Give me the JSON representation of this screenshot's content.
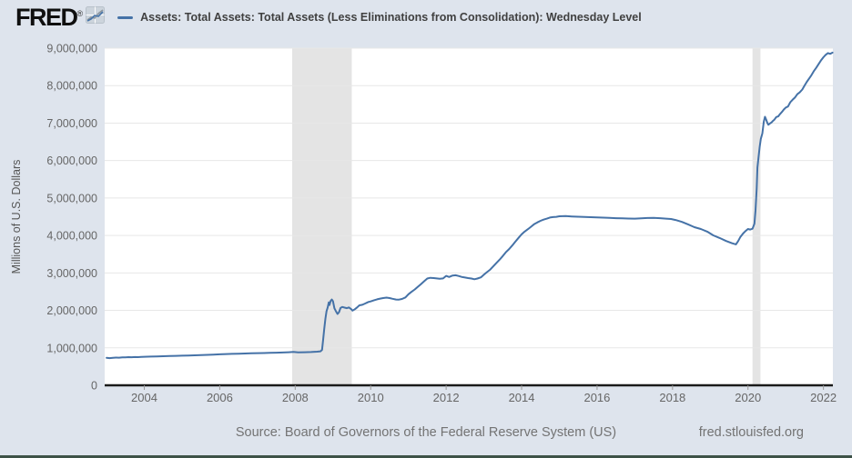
{
  "header": {
    "logo_text": "FRED",
    "logo_registered": "®",
    "legend_marker": "line-dash",
    "series_title": "Assets: Total Assets: Total Assets (Less Eliminations from Consolidation): Wednesday Level"
  },
  "footer": {
    "source_label": "Source: Board of Governors of the Federal Reserve System (US)",
    "link_text": "fred.stlouisfed.org"
  },
  "icons": {
    "logo_chart_icon": "line-chart-icon"
  },
  "colors": {
    "page_background": "#dee4ed",
    "plot_background": "#ffffff",
    "line": "#4572a7",
    "gridline": "#e7e7e7",
    "recession_band": "#e4e4e4",
    "axis_line": "#1a1a1a",
    "tick_text": "#666666",
    "axis_title_text": "#555555",
    "title_text": "#404040",
    "footer_text": "#737373",
    "bottom_bar": "#3d5247"
  },
  "chart_data": {
    "type": "line",
    "title": "Assets: Total Assets: Total Assets (Less Eliminations from Consolidation): Wednesday Level",
    "xlabel": "",
    "ylabel": "Millions of U.S. Dollars",
    "xlim": [
      2002.95,
      2022.25
    ],
    "ylim": [
      0,
      9000000
    ],
    "x_ticks": [
      2004,
      2006,
      2008,
      2010,
      2012,
      2014,
      2016,
      2018,
      2020,
      2022
    ],
    "y_ticks": [
      0,
      1000000,
      2000000,
      3000000,
      4000000,
      5000000,
      6000000,
      7000000,
      8000000,
      9000000
    ],
    "grid": "horizontal",
    "legend_position": "top-header",
    "recession_bands": [
      [
        2007.92,
        2009.5
      ],
      [
        2020.12,
        2020.33
      ]
    ],
    "series": [
      {
        "name": "Assets: Total Assets: Total Assets (Less Eliminations from Consolidation): Wednesday Level",
        "units": "Millions of U.S. Dollars",
        "points": [
          [
            2003.0,
            732000
          ],
          [
            2003.08,
            726000
          ],
          [
            2003.17,
            736000
          ],
          [
            2003.25,
            740000
          ],
          [
            2003.33,
            737000
          ],
          [
            2003.42,
            744000
          ],
          [
            2003.5,
            747000
          ],
          [
            2003.58,
            751000
          ],
          [
            2003.67,
            749000
          ],
          [
            2003.75,
            754000
          ],
          [
            2003.83,
            752000
          ],
          [
            2003.92,
            758000
          ],
          [
            2004.0,
            762000
          ],
          [
            2004.17,
            766000
          ],
          [
            2004.33,
            771000
          ],
          [
            2004.5,
            776000
          ],
          [
            2004.67,
            781000
          ],
          [
            2004.83,
            787000
          ],
          [
            2005.0,
            791000
          ],
          [
            2005.17,
            796000
          ],
          [
            2005.33,
            801000
          ],
          [
            2005.5,
            806000
          ],
          [
            2005.67,
            812000
          ],
          [
            2005.83,
            819000
          ],
          [
            2006.0,
            828000
          ],
          [
            2006.17,
            834000
          ],
          [
            2006.33,
            839000
          ],
          [
            2006.5,
            844000
          ],
          [
            2006.67,
            849000
          ],
          [
            2006.83,
            853000
          ],
          [
            2007.0,
            858000
          ],
          [
            2007.17,
            862000
          ],
          [
            2007.33,
            867000
          ],
          [
            2007.5,
            871000
          ],
          [
            2007.67,
            876000
          ],
          [
            2007.83,
            882000
          ],
          [
            2007.95,
            891000
          ],
          [
            2008.08,
            879000
          ],
          [
            2008.25,
            884000
          ],
          [
            2008.42,
            889000
          ],
          [
            2008.58,
            898000
          ],
          [
            2008.67,
            907000
          ],
          [
            2008.71,
            945000
          ],
          [
            2008.74,
            1215000
          ],
          [
            2008.77,
            1505000
          ],
          [
            2008.8,
            1780000
          ],
          [
            2008.83,
            1975000
          ],
          [
            2008.86,
            2080000
          ],
          [
            2008.89,
            2215000
          ],
          [
            2008.91,
            2145000
          ],
          [
            2008.94,
            2255000
          ],
          [
            2008.97,
            2290000
          ],
          [
            2009.0,
            2245000
          ],
          [
            2009.04,
            2055000
          ],
          [
            2009.08,
            1975000
          ],
          [
            2009.12,
            1905000
          ],
          [
            2009.16,
            1950000
          ],
          [
            2009.2,
            2065000
          ],
          [
            2009.25,
            2090000
          ],
          [
            2009.31,
            2075000
          ],
          [
            2009.37,
            2060000
          ],
          [
            2009.42,
            2080000
          ],
          [
            2009.48,
            2035000
          ],
          [
            2009.52,
            1995000
          ],
          [
            2009.58,
            2030000
          ],
          [
            2009.64,
            2080000
          ],
          [
            2009.7,
            2135000
          ],
          [
            2009.78,
            2150000
          ],
          [
            2009.86,
            2185000
          ],
          [
            2009.94,
            2225000
          ],
          [
            2010.0,
            2240000
          ],
          [
            2010.08,
            2265000
          ],
          [
            2010.17,
            2295000
          ],
          [
            2010.25,
            2315000
          ],
          [
            2010.33,
            2330000
          ],
          [
            2010.42,
            2340000
          ],
          [
            2010.5,
            2330000
          ],
          [
            2010.58,
            2310000
          ],
          [
            2010.67,
            2290000
          ],
          [
            2010.75,
            2288000
          ],
          [
            2010.83,
            2305000
          ],
          [
            2010.92,
            2345000
          ],
          [
            2011.0,
            2430000
          ],
          [
            2011.08,
            2495000
          ],
          [
            2011.17,
            2560000
          ],
          [
            2011.25,
            2630000
          ],
          [
            2011.33,
            2700000
          ],
          [
            2011.42,
            2780000
          ],
          [
            2011.5,
            2850000
          ],
          [
            2011.58,
            2870000
          ],
          [
            2011.67,
            2862000
          ],
          [
            2011.75,
            2852000
          ],
          [
            2011.83,
            2842000
          ],
          [
            2011.92,
            2852000
          ],
          [
            2012.0,
            2920000
          ],
          [
            2012.08,
            2892000
          ],
          [
            2012.17,
            2930000
          ],
          [
            2012.25,
            2938000
          ],
          [
            2012.33,
            2918000
          ],
          [
            2012.42,
            2892000
          ],
          [
            2012.5,
            2878000
          ],
          [
            2012.58,
            2862000
          ],
          [
            2012.67,
            2850000
          ],
          [
            2012.75,
            2832000
          ],
          [
            2012.83,
            2850000
          ],
          [
            2012.92,
            2882000
          ],
          [
            2013.0,
            2952000
          ],
          [
            2013.08,
            3020000
          ],
          [
            2013.17,
            3090000
          ],
          [
            2013.25,
            3175000
          ],
          [
            2013.33,
            3265000
          ],
          [
            2013.42,
            3358000
          ],
          [
            2013.5,
            3450000
          ],
          [
            2013.58,
            3548000
          ],
          [
            2013.67,
            3640000
          ],
          [
            2013.75,
            3732000
          ],
          [
            2013.83,
            3830000
          ],
          [
            2013.92,
            3938000
          ],
          [
            2014.0,
            4030000
          ],
          [
            2014.08,
            4102000
          ],
          [
            2014.17,
            4170000
          ],
          [
            2014.25,
            4232000
          ],
          [
            2014.33,
            4298000
          ],
          [
            2014.42,
            4350000
          ],
          [
            2014.5,
            4390000
          ],
          [
            2014.58,
            4422000
          ],
          [
            2014.67,
            4450000
          ],
          [
            2014.75,
            4478000
          ],
          [
            2014.83,
            4490000
          ],
          [
            2014.92,
            4498000
          ],
          [
            2015.0,
            4512000
          ],
          [
            2015.17,
            4518000
          ],
          [
            2015.33,
            4508000
          ],
          [
            2015.5,
            4500000
          ],
          [
            2015.67,
            4492000
          ],
          [
            2015.83,
            4488000
          ],
          [
            2016.0,
            4482000
          ],
          [
            2016.17,
            4475000
          ],
          [
            2016.33,
            4468000
          ],
          [
            2016.5,
            4462000
          ],
          [
            2016.67,
            4456000
          ],
          [
            2016.83,
            4452000
          ],
          [
            2017.0,
            4450000
          ],
          [
            2017.17,
            4458000
          ],
          [
            2017.33,
            4465000
          ],
          [
            2017.5,
            4470000
          ],
          [
            2017.67,
            4460000
          ],
          [
            2017.83,
            4448000
          ],
          [
            2017.96,
            4440000
          ],
          [
            2018.08,
            4412000
          ],
          [
            2018.25,
            4362000
          ],
          [
            2018.42,
            4292000
          ],
          [
            2018.58,
            4222000
          ],
          [
            2018.75,
            4172000
          ],
          [
            2018.92,
            4102000
          ],
          [
            2019.08,
            4002000
          ],
          [
            2019.25,
            3932000
          ],
          [
            2019.42,
            3852000
          ],
          [
            2019.58,
            3792000
          ],
          [
            2019.68,
            3762000
          ],
          [
            2019.74,
            3852000
          ],
          [
            2019.8,
            3962000
          ],
          [
            2019.87,
            4052000
          ],
          [
            2019.94,
            4122000
          ],
          [
            2020.0,
            4172000
          ],
          [
            2020.06,
            4158000
          ],
          [
            2020.12,
            4180000
          ],
          [
            2020.17,
            4312000
          ],
          [
            2020.2,
            4668000
          ],
          [
            2020.23,
            5254000
          ],
          [
            2020.25,
            5812000
          ],
          [
            2020.28,
            6083000
          ],
          [
            2020.31,
            6368000
          ],
          [
            2020.34,
            6573000
          ],
          [
            2020.38,
            6721000
          ],
          [
            2020.42,
            7037000
          ],
          [
            2020.45,
            7168000
          ],
          [
            2020.48,
            7098000
          ],
          [
            2020.51,
            7010000
          ],
          [
            2020.54,
            6956000
          ],
          [
            2020.58,
            6988000
          ],
          [
            2020.62,
            7014000
          ],
          [
            2020.66,
            7056000
          ],
          [
            2020.7,
            7094000
          ],
          [
            2020.75,
            7162000
          ],
          [
            2020.8,
            7177000
          ],
          [
            2020.85,
            7243000
          ],
          [
            2020.9,
            7298000
          ],
          [
            2020.95,
            7362000
          ],
          [
            2021.0,
            7414000
          ],
          [
            2021.06,
            7442000
          ],
          [
            2021.12,
            7557000
          ],
          [
            2021.18,
            7619000
          ],
          [
            2021.25,
            7688000
          ],
          [
            2021.31,
            7772000
          ],
          [
            2021.37,
            7819000
          ],
          [
            2021.44,
            7897000
          ],
          [
            2021.5,
            8002000
          ],
          [
            2021.56,
            8102000
          ],
          [
            2021.62,
            8190000
          ],
          [
            2021.68,
            8277000
          ],
          [
            2021.75,
            8397000
          ],
          [
            2021.81,
            8482000
          ],
          [
            2021.87,
            8571000
          ],
          [
            2021.94,
            8682000
          ],
          [
            2022.0,
            8757000
          ],
          [
            2022.06,
            8822000
          ],
          [
            2022.12,
            8868000
          ],
          [
            2022.18,
            8846000
          ],
          [
            2022.24,
            8882000
          ]
        ]
      }
    ]
  }
}
